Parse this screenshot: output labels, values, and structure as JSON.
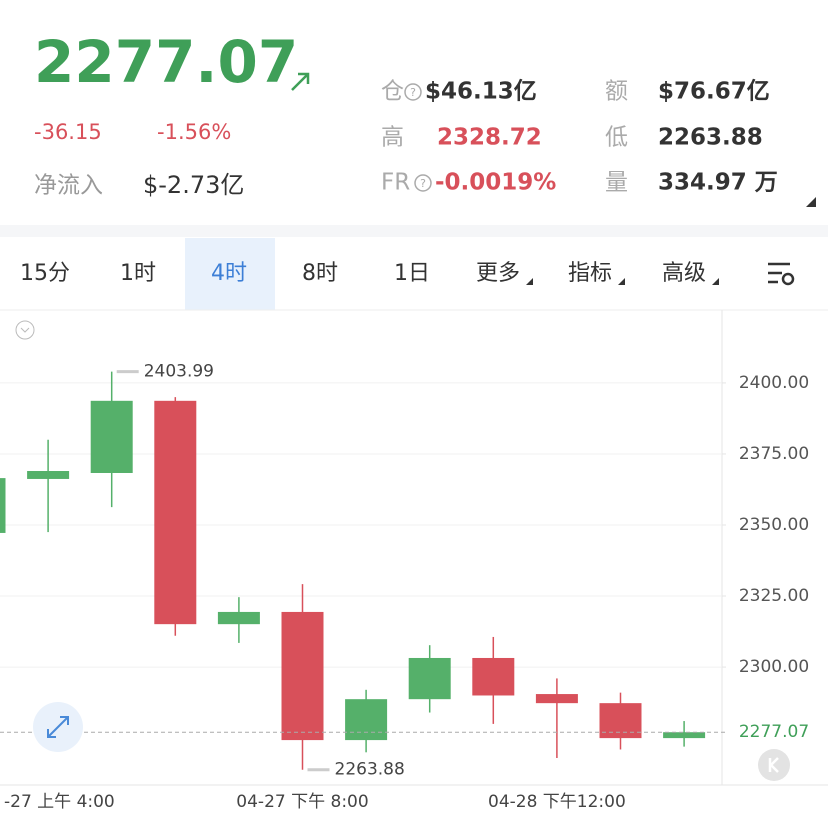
{
  "header": {
    "price": "2277.07",
    "change": "-36.15",
    "change_pct": "-1.56%",
    "net_inflow_label": "净流入",
    "net_inflow": "$-2.73亿",
    "stats": [
      {
        "label": "仓",
        "value": "$46.13亿"
      },
      {
        "label": "额",
        "value": "$76.67亿"
      },
      {
        "label": "高",
        "value": "2328.72"
      },
      {
        "label": "低",
        "value": "2263.88"
      },
      {
        "label": "FR",
        "value": "-0.0019%"
      },
      {
        "label": "量",
        "value": "334.97 万"
      }
    ]
  },
  "tabs": [
    "15分",
    "1时",
    "4时",
    "8时",
    "1日",
    "更多",
    "指标",
    "高级"
  ],
  "active_tab": "4时",
  "chart_data": {
    "type": "candlestick",
    "categories": [
      null,
      "-27 上午 4:00",
      null,
      null,
      null,
      "04-27 下午 8:00",
      null,
      null,
      null,
      "04-28 下午12:00",
      null,
      null
    ],
    "open": [
      2347.2,
      2366.2,
      2368.3,
      2393.7,
      2315.1,
      2319.4,
      2274.3,
      2288.7,
      2303.2,
      2290.5,
      2287.3,
      2275.0
    ],
    "high": [
      2370.0,
      2380.0,
      2403.99,
      2395.0,
      2324.6,
      2329.2,
      2292.0,
      2307.7,
      2310.6,
      2296.0,
      2291.0,
      2281.0
    ],
    "low": [
      2345.0,
      2347.5,
      2356.3,
      2311.0,
      2308.5,
      2263.88,
      2270.0,
      2284.0,
      2280.0,
      2268.0,
      2271.0,
      2272.0
    ],
    "close": [
      2366.5,
      2369.0,
      2393.7,
      2315.1,
      2319.4,
      2274.3,
      2288.7,
      2303.2,
      2290.0,
      2287.3,
      2275.0,
      2277.07
    ],
    "up_color": "#55b06a",
    "down_color": "#d8505a",
    "ylim": [
      2259.2,
      2423.9
    ],
    "yticks": [
      {
        "value": 2300,
        "label": "2300.00"
      },
      {
        "value": 2325,
        "label": "2325.00"
      },
      {
        "value": 2350,
        "label": "2350.00"
      },
      {
        "value": 2375,
        "label": "2375.00"
      },
      {
        "value": 2400,
        "label": "2400.00"
      }
    ],
    "grid": true,
    "high_label": "2403.99",
    "low_label": "2263.88",
    "last_label": "2277.07"
  }
}
